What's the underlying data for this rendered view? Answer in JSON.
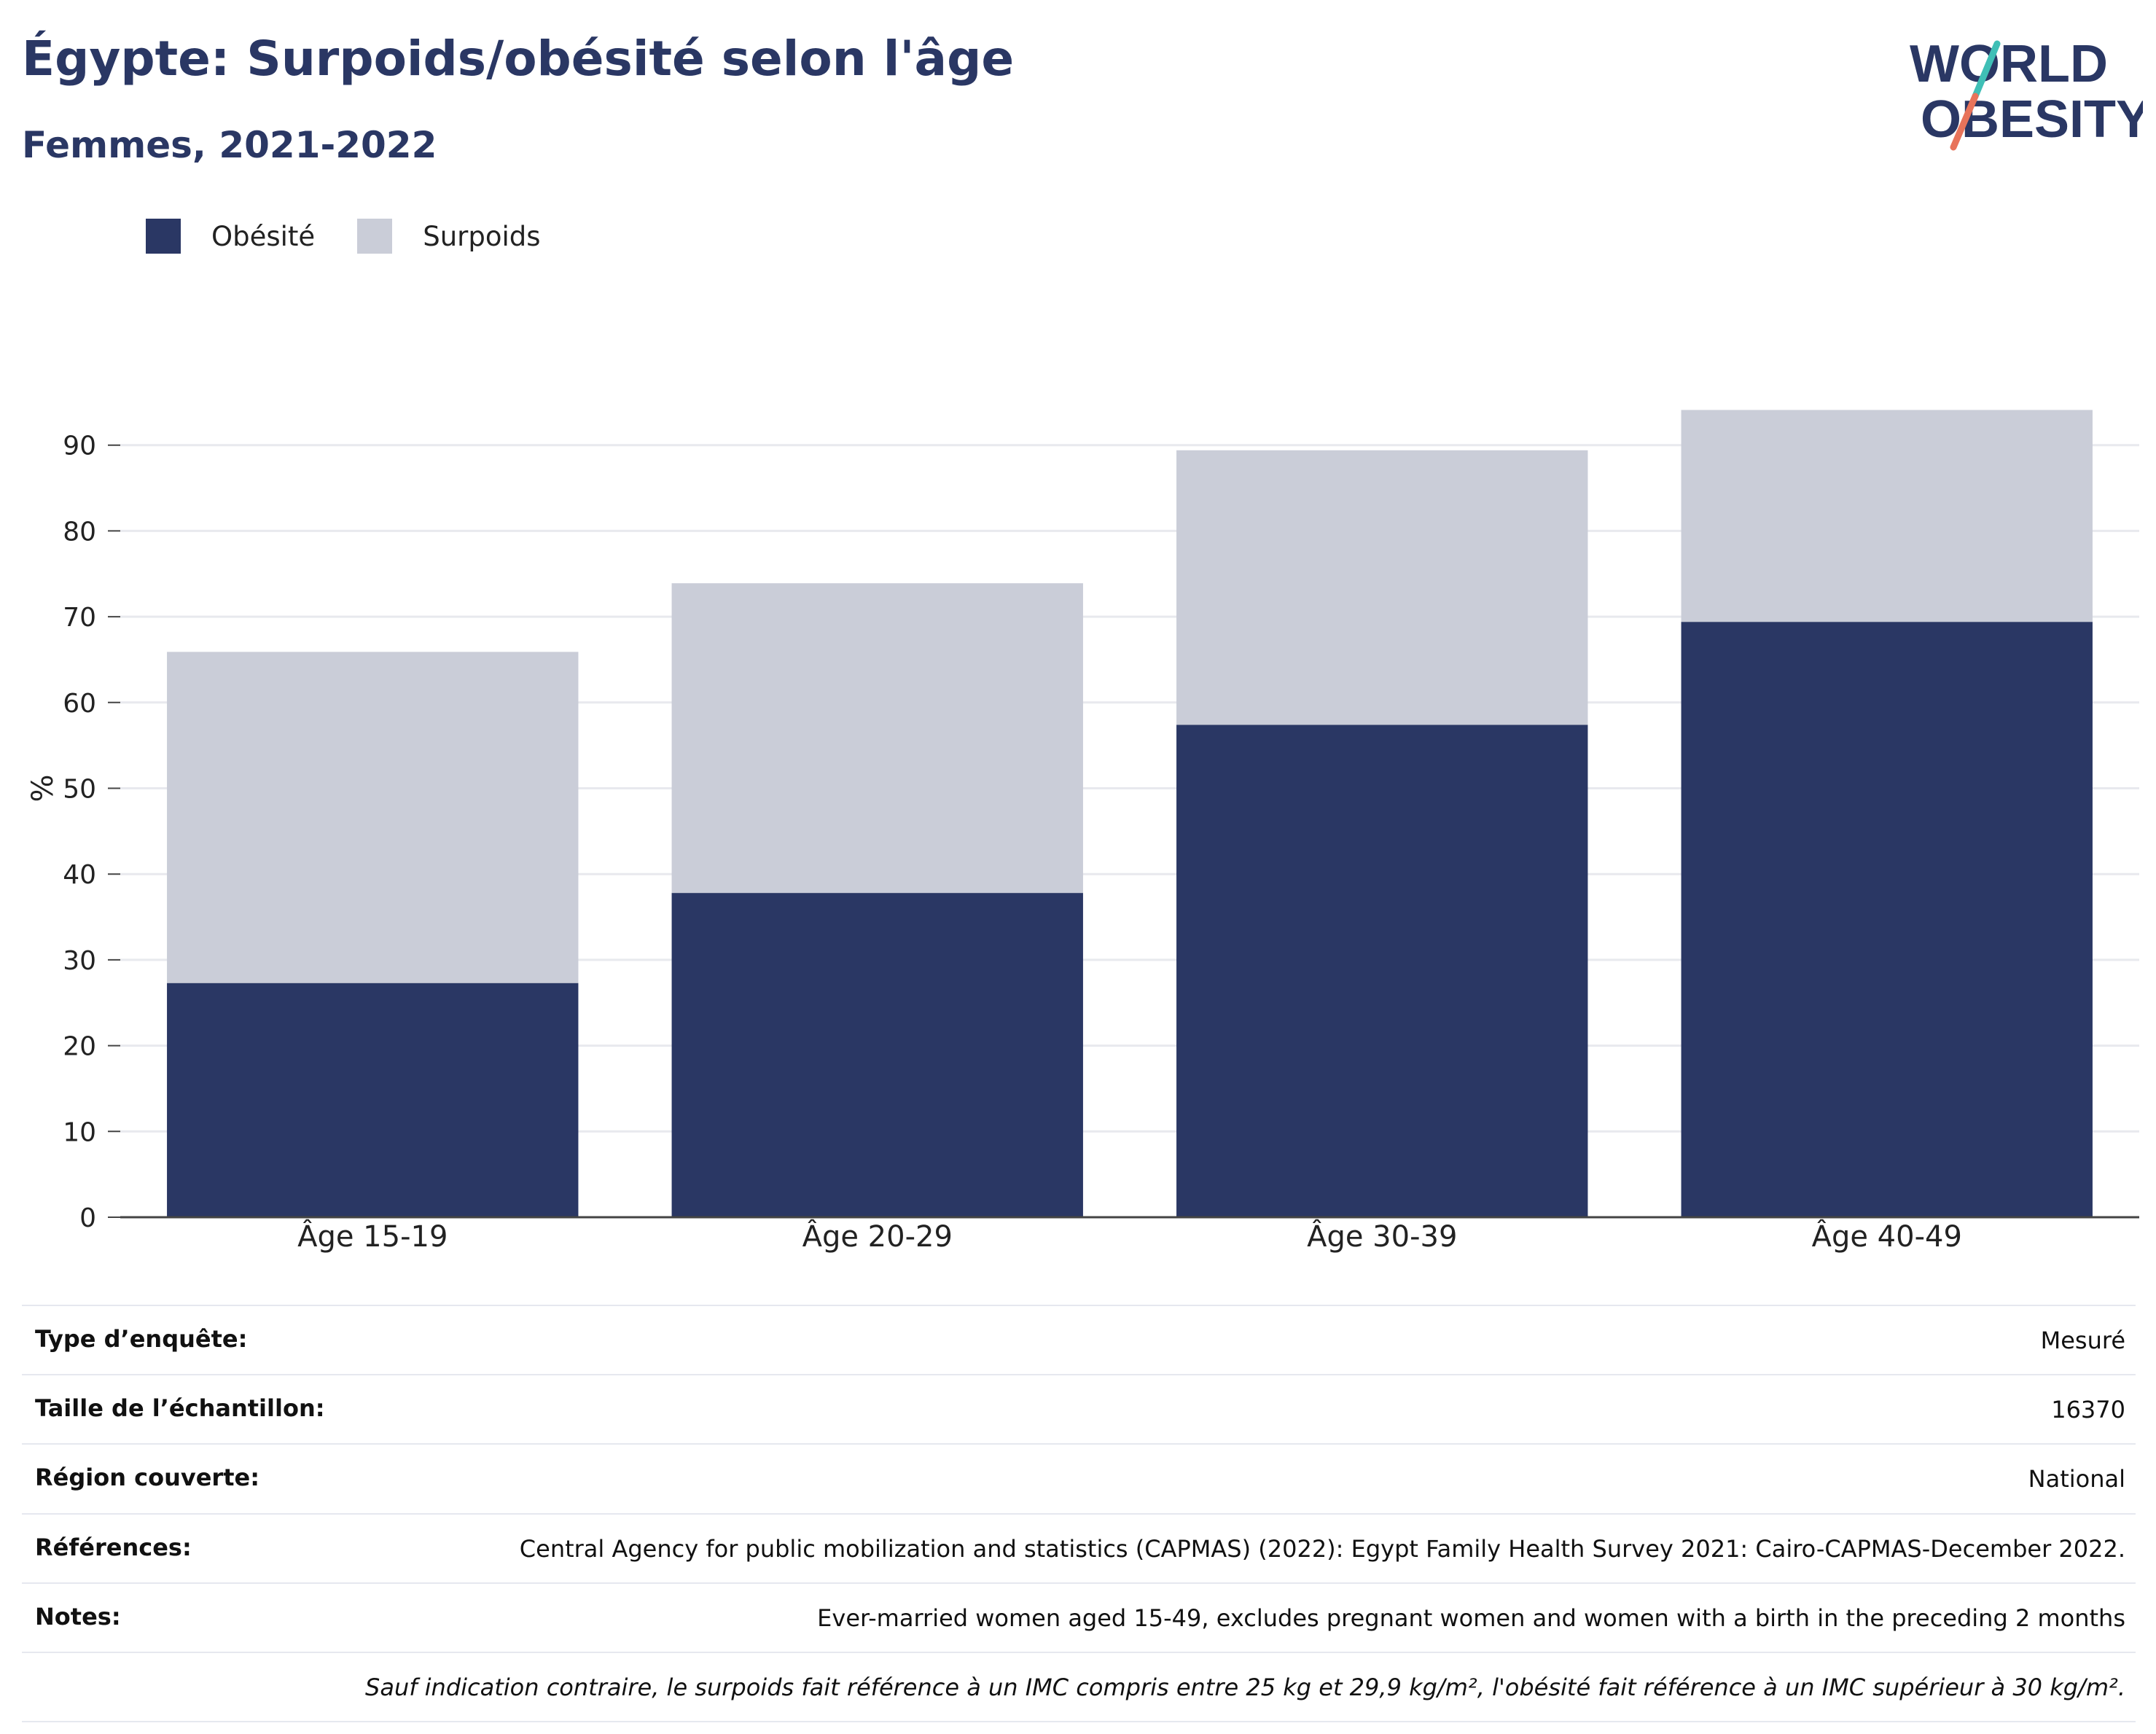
{
  "title": "Égypte: Surpoids/obésité selon l'âge",
  "subtitle": "Femmes, 2021-2022",
  "logo": {
    "line1": "WORLD",
    "line2": "OBESITY"
  },
  "colors": {
    "obesity": "#2a3764",
    "overweight": "#cacdd8",
    "text": "#2a3764",
    "logo_accent1": "#3fbfb6",
    "logo_accent2": "#e8735a"
  },
  "chart_data": {
    "type": "bar",
    "stacked": true,
    "categories": [
      "Âge 15-19",
      "Âge 20-29",
      "Âge 30-39",
      "Âge 40-49"
    ],
    "series": [
      {
        "name": "Obésité",
        "values": [
          27.3,
          37.8,
          57.4,
          69.4
        ],
        "color": "#2a3764"
      },
      {
        "name": "Surpoids",
        "values": [
          38.6,
          36.1,
          32.0,
          24.7
        ],
        "color": "#cacdd8"
      }
    ],
    "ylabel": "%",
    "xlabel": "",
    "ylim": [
      0,
      95
    ],
    "yticks": [
      0,
      10,
      20,
      30,
      40,
      50,
      60,
      70,
      80,
      90
    ],
    "grid": true,
    "legend_position": "top-left"
  },
  "info": {
    "survey_type": {
      "label": "Type d’enquête:",
      "value": "Mesuré"
    },
    "sample_size": {
      "label": "Taille de l’échantillon:",
      "value": "16370"
    },
    "region": {
      "label": "Région couverte:",
      "value": "National"
    },
    "references": {
      "label": "Références:",
      "value": "Central Agency for public mobilization and statistics (CAPMAS) (2022): Egypt Family Health Survey 2021: Cairo-CAPMAS-December 2022."
    },
    "notes": {
      "label": "Notes:",
      "value": "Ever-married women aged 15-49, excludes pregnant women and women with a birth in the preceding 2 months"
    },
    "definition": "Sauf indication contraire, le surpoids fait référence à un IMC compris entre 25 kg et 29,9 kg/m², l'obésité fait référence à un IMC supérieur à 30 kg/m²."
  }
}
